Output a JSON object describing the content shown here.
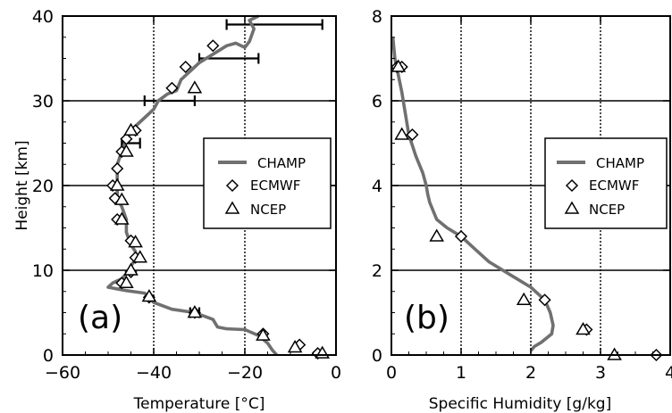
{
  "chart_data": [
    {
      "type": "line",
      "panel": "(a)",
      "xlabel": "Temperature [°C]",
      "ylabel": "Height [km]",
      "xlim": [
        -60,
        0
      ],
      "ylim": [
        0,
        40
      ],
      "xticks": [
        -60,
        -40,
        -20,
        0
      ],
      "yticks": [
        0,
        10,
        20,
        30,
        40
      ],
      "x_gridlines": [
        -40,
        -20
      ],
      "y_gridlines": [
        10,
        20,
        30
      ],
      "legend": {
        "placement": "middle-right",
        "entries": [
          "CHAMP",
          "ECMWF",
          "NCEP"
        ]
      },
      "series": [
        {
          "name": "CHAMP",
          "marker": "line",
          "color": "#707070",
          "points": [
            [
              -13,
              0
            ],
            [
              -14,
              0.6
            ],
            [
              -15,
              1.4
            ],
            [
              -17,
              2.3
            ],
            [
              -20,
              3.0
            ],
            [
              -24,
              3.1
            ],
            [
              -26,
              3.3
            ],
            [
              -27,
              4.2
            ],
            [
              -31,
              5.0
            ],
            [
              -36,
              5.4
            ],
            [
              -40,
              6.2
            ],
            [
              -41,
              6.8
            ],
            [
              -42,
              7.3
            ],
            [
              -46,
              7.6
            ],
            [
              -50,
              8.0
            ],
            [
              -49,
              8.5
            ],
            [
              -47,
              9.0
            ],
            [
              -46,
              9.6
            ],
            [
              -45,
              10.5
            ],
            [
              -44,
              11.3
            ],
            [
              -44,
              12.2
            ],
            [
              -45,
              13.0
            ],
            [
              -46,
              14.5
            ],
            [
              -46,
              16.0
            ],
            [
              -47,
              17.5
            ],
            [
              -48,
              18.5
            ],
            [
              -48,
              19.5
            ],
            [
              -48,
              21.0
            ],
            [
              -48,
              22.5
            ],
            [
              -47,
              24.0
            ],
            [
              -46,
              25.5
            ],
            [
              -44,
              27.0
            ],
            [
              -42,
              28.0
            ],
            [
              -40,
              29.0
            ],
            [
              -39,
              30.0
            ],
            [
              -37,
              30.8
            ],
            [
              -35,
              31.2
            ],
            [
              -34,
              32.5
            ],
            [
              -32,
              33.5
            ],
            [
              -30,
              34.5
            ],
            [
              -27,
              35.5
            ],
            [
              -24,
              36.5
            ],
            [
              -22,
              36.8
            ],
            [
              -20,
              36.3
            ],
            [
              -19,
              37.0
            ],
            [
              -18,
              38.5
            ],
            [
              -19,
              39.5
            ],
            [
              -17,
              40.0
            ]
          ]
        },
        {
          "name": "ECMWF",
          "marker": "diamond",
          "points": [
            [
              -4,
              0.2
            ],
            [
              -8,
              1.2
            ],
            [
              -16,
              2.5
            ],
            [
              -31,
              5.0
            ],
            [
              -41,
              6.8
            ],
            [
              -47,
              8.5
            ],
            [
              -45,
              9.8
            ],
            [
              -44,
              11.5
            ],
            [
              -45,
              13.5
            ],
            [
              -48,
              16.0
            ],
            [
              -48.5,
              18.5
            ],
            [
              -49,
              20.0
            ],
            [
              -48,
              22.0
            ],
            [
              -47,
              24.0
            ],
            [
              -46,
              25.5
            ],
            [
              -44,
              26.5
            ],
            [
              -36,
              31.5
            ],
            [
              -33,
              34.0
            ],
            [
              -27,
              36.5
            ]
          ]
        },
        {
          "name": "NCEP",
          "marker": "triangle",
          "points": [
            [
              -3,
              0.2
            ],
            [
              -9,
              0.9
            ],
            [
              -16,
              2.3
            ],
            [
              -31,
              5.0
            ],
            [
              -41,
              6.9
            ],
            [
              -46,
              8.5
            ],
            [
              -45,
              10.0
            ],
            [
              -43,
              11.5
            ],
            [
              -44,
              13.3
            ],
            [
              -47,
              16.0
            ],
            [
              -47,
              18.3
            ],
            [
              -48,
              20.0
            ],
            [
              -46,
              24.0
            ],
            [
              -45,
              26.5
            ],
            [
              -31,
              31.5
            ]
          ]
        }
      ],
      "error_bars": [
        {
          "y": 5.0,
          "x_low": -32,
          "x_high": -30
        },
        {
          "y": 25.0,
          "x_low": -47,
          "x_high": -43
        },
        {
          "y": 30.0,
          "x_low": -42,
          "x_high": -31
        },
        {
          "y": 35.0,
          "x_low": -30,
          "x_high": -17
        },
        {
          "y": 39.0,
          "x_low": -24,
          "x_high": -3
        }
      ]
    },
    {
      "type": "line",
      "panel": "(b)",
      "xlabel": "Specific Humidity [g/kg]",
      "ylabel": "",
      "xlim": [
        0,
        4
      ],
      "ylim": [
        0,
        8
      ],
      "xticks": [
        0,
        1,
        2,
        3,
        4
      ],
      "yticks": [
        0,
        2,
        4,
        6,
        8
      ],
      "x_gridlines": [
        1,
        2,
        3
      ],
      "y_gridlines": [
        2,
        4,
        6
      ],
      "legend": {
        "placement": "middle-right",
        "entries": [
          "CHAMP",
          "ECMWF",
          "NCEP"
        ]
      },
      "series": [
        {
          "name": "CHAMP",
          "marker": "line",
          "color": "#707070",
          "points": [
            [
              2.0,
              0.1
            ],
            [
              2.05,
              0.2
            ],
            [
              2.15,
              0.3
            ],
            [
              2.3,
              0.5
            ],
            [
              2.32,
              0.7
            ],
            [
              2.28,
              1.0
            ],
            [
              2.2,
              1.3
            ],
            [
              2.0,
              1.6
            ],
            [
              1.7,
              1.9
            ],
            [
              1.4,
              2.2
            ],
            [
              1.2,
              2.5
            ],
            [
              1.0,
              2.8
            ],
            [
              0.8,
              3.0
            ],
            [
              0.65,
              3.2
            ],
            [
              0.6,
              3.4
            ],
            [
              0.55,
              3.6
            ],
            [
              0.52,
              3.8
            ],
            [
              0.5,
              4.0
            ],
            [
              0.45,
              4.3
            ],
            [
              0.35,
              4.7
            ],
            [
              0.25,
              5.2
            ],
            [
              0.2,
              5.7
            ],
            [
              0.15,
              6.2
            ],
            [
              0.1,
              6.6
            ],
            [
              0.05,
              7.0
            ],
            [
              0.02,
              7.5
            ]
          ]
        },
        {
          "name": "ECMWF",
          "marker": "diamond",
          "points": [
            [
              3.8,
              0.0
            ],
            [
              2.8,
              0.6
            ],
            [
              2.2,
              1.3
            ],
            [
              1.0,
              2.8
            ],
            [
              0.3,
              5.2
            ],
            [
              0.15,
              6.8
            ],
            [
              0.08,
              6.8
            ]
          ]
        },
        {
          "name": "NCEP",
          "marker": "triangle",
          "points": [
            [
              3.2,
              0.0
            ],
            [
              2.75,
              0.6
            ],
            [
              1.9,
              1.3
            ],
            [
              0.65,
              2.8
            ],
            [
              0.15,
              5.2
            ],
            [
              0.1,
              6.8
            ]
          ]
        }
      ]
    }
  ]
}
